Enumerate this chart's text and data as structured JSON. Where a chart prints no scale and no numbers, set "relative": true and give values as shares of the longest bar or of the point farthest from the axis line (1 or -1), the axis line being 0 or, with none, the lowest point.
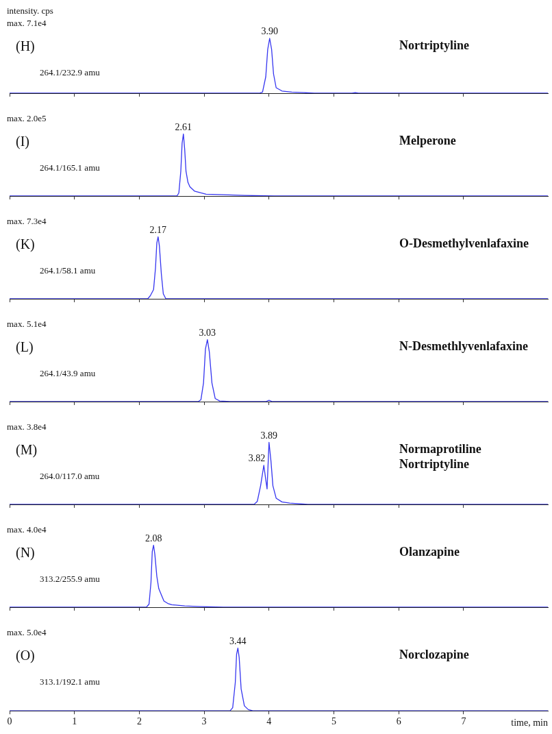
{
  "chart_data": [
    {
      "type": "line",
      "relative": true,
      "title": "Nortriptyline",
      "ylabel": "intensity. cps",
      "color": "#3535f0",
      "marker": "none",
      "tick_labels": false,
      "xlim": [
        0,
        8.3
      ],
      "xticks": [
        0,
        1,
        2,
        3,
        4,
        5,
        6,
        7
      ],
      "annotations": [
        "max. 7.1e4",
        "(H)",
        "264.1/232.9 amu",
        {
          "text": "3.90",
          "x": 4.01,
          "y": 1
        }
      ],
      "x": [
        0,
        3.85,
        3.9,
        3.95,
        3.98,
        4.01,
        4.04,
        4.07,
        4.11,
        4.2,
        4.35,
        4.54,
        4.7,
        5.28,
        5.33,
        5.38,
        8.3
      ],
      "values": [
        0,
        0,
        0.02,
        0.3,
        0.8,
        1,
        0.8,
        0.35,
        0.1,
        0.04,
        0.02,
        0.01,
        0,
        0,
        0.01,
        0,
        0
      ]
    },
    {
      "type": "line",
      "relative": true,
      "title": "Melperone",
      "color": "#3535f0",
      "marker": "none",
      "tick_labels": false,
      "xlim": [
        0,
        8.3
      ],
      "xticks": [
        0,
        1,
        2,
        3,
        4,
        5,
        6,
        7
      ],
      "annotations": [
        "max. 2.0e5",
        "(I)",
        "264.1/165.1 amu",
        {
          "text": "2.61",
          "x": 2.68,
          "y": 1
        }
      ],
      "x": [
        0,
        2.58,
        2.61,
        2.64,
        2.66,
        2.68,
        2.7,
        2.72,
        2.75,
        2.78,
        2.85,
        2.95,
        3.03,
        3.3,
        3.62,
        4.08,
        8.3
      ],
      "values": [
        0,
        0,
        0.05,
        0.4,
        0.85,
        1,
        0.75,
        0.4,
        0.22,
        0.15,
        0.08,
        0.05,
        0.03,
        0.02,
        0.01,
        0,
        0
      ]
    },
    {
      "type": "line",
      "relative": true,
      "title": "O-Desmethylvenlafaxine",
      "color": "#3535f0",
      "marker": "none",
      "tick_labels": false,
      "xlim": [
        0,
        8.3
      ],
      "xticks": [
        0,
        1,
        2,
        3,
        4,
        5,
        6,
        7
      ],
      "annotations": [
        "max. 7.3e4",
        "(K)",
        "264.1/58.1 amu",
        {
          "text": "2.17",
          "x": 2.29,
          "y": 1
        }
      ],
      "x": [
        0,
        2.13,
        2.17,
        2.22,
        2.25,
        2.27,
        2.29,
        2.31,
        2.34,
        2.37,
        2.41,
        8.3
      ],
      "values": [
        0,
        0,
        0.05,
        0.15,
        0.5,
        0.9,
        1,
        0.85,
        0.4,
        0.08,
        0,
        0
      ]
    },
    {
      "type": "line",
      "relative": true,
      "title": "N-Desmethlyvenlafaxine",
      "color": "#3535f0",
      "marker": "none",
      "tick_labels": false,
      "xlim": [
        0,
        8.3
      ],
      "xticks": [
        0,
        1,
        2,
        3,
        4,
        5,
        6,
        7
      ],
      "annotations": [
        "max. 5.1e4",
        "(L)",
        "264.1/43.9 amu",
        {
          "text": "3.03",
          "x": 3.05,
          "y": 1
        }
      ],
      "x": [
        0,
        2.91,
        2.95,
        2.99,
        3.02,
        3.05,
        3.08,
        3.12,
        3.17,
        3.24,
        3.4,
        3.95,
        4.0,
        4.05,
        8.3
      ],
      "values": [
        0,
        0,
        0.03,
        0.3,
        0.85,
        1,
        0.8,
        0.3,
        0.05,
        0.01,
        0,
        0,
        0.02,
        0,
        0
      ]
    },
    {
      "type": "line",
      "relative": true,
      "title": "Normaprotiline\nNortriptyline",
      "color": "#3535f0",
      "marker": "none",
      "tick_labels": false,
      "xlim": [
        0,
        8.3
      ],
      "xticks": [
        0,
        1,
        2,
        3,
        4,
        5,
        6,
        7
      ],
      "annotations": [
        "max. 3.8e4",
        "(M)",
        "264.0/117.0 amu",
        {
          "text": "3.82",
          "x": 3.92,
          "y": 0.63
        },
        {
          "text": "3.89",
          "x": 4.0,
          "y": 1
        }
      ],
      "x": [
        0,
        3.77,
        3.82,
        3.87,
        3.92,
        3.95,
        3.97,
        3.98,
        4.0,
        4.03,
        4.06,
        4.11,
        4.2,
        4.32,
        4.6,
        8.3
      ],
      "values": [
        0,
        0,
        0.05,
        0.3,
        0.63,
        0.4,
        0.25,
        0.5,
        1,
        0.7,
        0.3,
        0.1,
        0.04,
        0.02,
        0,
        0
      ]
    },
    {
      "type": "line",
      "relative": true,
      "title": "Olanzapine",
      "color": "#3535f0",
      "marker": "none",
      "tick_labels": false,
      "xlim": [
        0,
        8.3
      ],
      "xticks": [
        0,
        1,
        2,
        3,
        4,
        5,
        6,
        7
      ],
      "annotations": [
        "max. 4.0e4",
        "(N)",
        "313.2/255.9 amu",
        {
          "text": "2.08",
          "x": 2.22,
          "y": 1
        }
      ],
      "x": [
        0,
        2.11,
        2.15,
        2.18,
        2.2,
        2.22,
        2.24,
        2.27,
        2.3,
        2.34,
        2.38,
        2.44,
        2.5,
        2.7,
        2.95,
        3.3,
        8.3
      ],
      "values": [
        0,
        0,
        0.05,
        0.4,
        0.9,
        1,
        0.85,
        0.5,
        0.3,
        0.2,
        0.1,
        0.06,
        0.04,
        0.02,
        0.01,
        0,
        0
      ]
    },
    {
      "type": "line",
      "relative": true,
      "title": "Norclozapine",
      "xlabel": "time, min",
      "color": "#3535f0",
      "marker": "none",
      "xlim": [
        0,
        8.3
      ],
      "xticks": [
        0,
        1,
        2,
        3,
        4,
        5,
        6,
        7
      ],
      "annotations": [
        "max. 5.0e4",
        "(O)",
        "313.1/192.1 amu",
        {
          "text": "3.44",
          "x": 3.52,
          "y": 1
        }
      ],
      "x": [
        0,
        3.4,
        3.44,
        3.48,
        3.5,
        3.52,
        3.54,
        3.57,
        3.62,
        3.68,
        3.75,
        8.3
      ],
      "values": [
        0,
        0,
        0.05,
        0.45,
        0.9,
        1,
        0.85,
        0.35,
        0.08,
        0.02,
        0,
        0
      ]
    }
  ]
}
